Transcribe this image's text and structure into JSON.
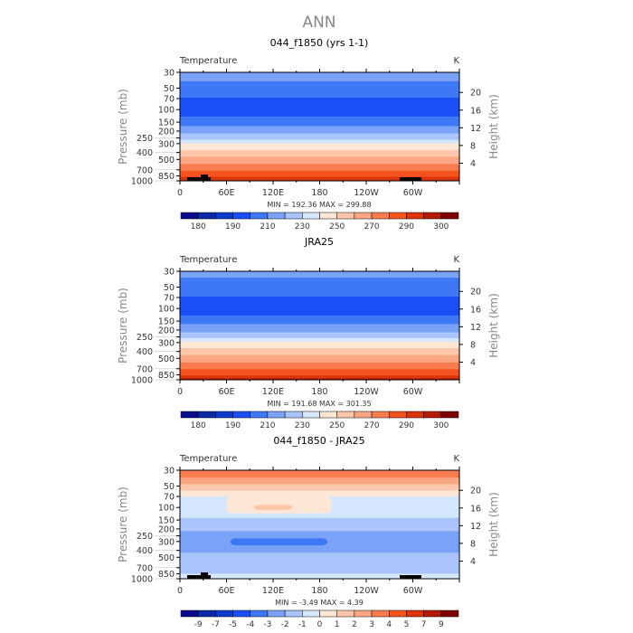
{
  "title": "ANN",
  "palette": [
    "#0a0a8c",
    "#0b2aa6",
    "#0c3ccf",
    "#1a4ff5",
    "#3f78f5",
    "#7aa2f7",
    "#a9c4fa",
    "#d5e7fc",
    "#fde7d4",
    "#fcc7aa",
    "#fba683",
    "#f97c4e",
    "#f4521f",
    "#da3407",
    "#b41b04",
    "#7f0000"
  ],
  "chart_data": [
    {
      "type": "heatmap",
      "title": "044_f1850 (yrs 1-1)",
      "left_label": "Temperature",
      "units": "K",
      "ylabel": "Pressure (mb)",
      "y2label": "Height (km)",
      "yticks": [
        30,
        50,
        70,
        100,
        150,
        200,
        250,
        300,
        400,
        500,
        700,
        850,
        1000
      ],
      "y2ticks": [
        4,
        8,
        12,
        16,
        20
      ],
      "xticks": [
        "0",
        "60E",
        "120E",
        "180",
        "120W",
        "60W"
      ],
      "ylim": [
        1000,
        30
      ],
      "yscale": "log",
      "stats": "MIN = 192.36   MAX = 299.88",
      "levels": [
        "180",
        "185",
        "190",
        "200",
        "210",
        "220",
        "230",
        "240",
        "250",
        "260",
        "270",
        "280",
        "290",
        "295",
        "300"
      ],
      "level_labels": [
        "180",
        "190",
        "210",
        "230",
        "250",
        "270",
        "290",
        "300"
      ],
      "bands": [
        [
          30,
          40,
          5
        ],
        [
          40,
          68,
          4
        ],
        [
          68,
          125,
          3
        ],
        [
          125,
          170,
          4
        ],
        [
          170,
          215,
          5
        ],
        [
          215,
          265,
          6
        ],
        [
          265,
          300,
          7
        ],
        [
          300,
          370,
          8
        ],
        [
          370,
          460,
          9
        ],
        [
          460,
          580,
          10
        ],
        [
          580,
          720,
          11
        ],
        [
          720,
          880,
          12
        ],
        [
          880,
          1000,
          13
        ]
      ],
      "patches": [],
      "topography": true
    },
    {
      "type": "heatmap",
      "title": "JRA25",
      "left_label": "Temperature",
      "units": "K",
      "ylabel": "Pressure (mb)",
      "y2label": "Height (km)",
      "yticks": [
        30,
        50,
        70,
        100,
        150,
        200,
        250,
        300,
        400,
        500,
        700,
        850,
        1000
      ],
      "y2ticks": [
        4,
        8,
        12,
        16,
        20
      ],
      "xticks": [
        "0",
        "60E",
        "120E",
        "180",
        "120W",
        "60W"
      ],
      "ylim": [
        1000,
        30
      ],
      "yscale": "log",
      "stats": "MIN = 191.68   MAX = 301.35",
      "levels": [
        "180",
        "185",
        "190",
        "200",
        "210",
        "220",
        "230",
        "240",
        "250",
        "260",
        "270",
        "280",
        "290",
        "295",
        "300"
      ],
      "level_labels": [
        "180",
        "190",
        "210",
        "230",
        "250",
        "270",
        "290",
        "300"
      ],
      "bands": [
        [
          30,
          37,
          5
        ],
        [
          37,
          68,
          4
        ],
        [
          68,
          125,
          3
        ],
        [
          125,
          165,
          4
        ],
        [
          165,
          215,
          5
        ],
        [
          215,
          260,
          6
        ],
        [
          260,
          290,
          7
        ],
        [
          290,
          360,
          8
        ],
        [
          360,
          450,
          9
        ],
        [
          450,
          570,
          10
        ],
        [
          570,
          710,
          11
        ],
        [
          710,
          870,
          12
        ],
        [
          870,
          960,
          13
        ],
        [
          960,
          1000,
          14
        ]
      ],
      "patches": [],
      "topography": false
    },
    {
      "type": "heatmap",
      "title": "044_f1850 - JRA25",
      "left_label": "Temperature",
      "units": "K",
      "ylabel": "Pressure (mb)",
      "y2label": "Height (km)",
      "yticks": [
        30,
        50,
        70,
        100,
        150,
        200,
        250,
        300,
        400,
        500,
        700,
        850,
        1000
      ],
      "y2ticks": [
        4,
        8,
        12,
        16,
        20
      ],
      "xticks": [
        "0",
        "60E",
        "120E",
        "180",
        "120W",
        "60W"
      ],
      "ylim": [
        1000,
        30
      ],
      "yscale": "log",
      "stats": "MIN =   -3.49   MAX =    4.39",
      "levels": [
        "-9",
        "-7",
        "-5",
        "-4",
        "-3",
        "-2",
        "-1",
        "0",
        "1",
        "2",
        "3",
        "4",
        "5",
        "7",
        "9"
      ],
      "level_labels": [
        "-9",
        "-7",
        "-5",
        "-4",
        "-3",
        "-2",
        "-1",
        "0",
        "1",
        "2",
        "3",
        "4",
        "5",
        "7",
        "9"
      ],
      "bands": [
        [
          30,
          38,
          11
        ],
        [
          38,
          47,
          10
        ],
        [
          47,
          58,
          9
        ],
        [
          58,
          70,
          8
        ],
        [
          70,
          140,
          7
        ],
        [
          140,
          215,
          6
        ],
        [
          215,
          430,
          5
        ],
        [
          430,
          850,
          6
        ],
        [
          850,
          1000,
          7
        ]
      ],
      "patches": [
        [
          70,
          120,
          60,
          195,
          8
        ],
        [
          92,
          108,
          95,
          145,
          9
        ],
        [
          270,
          340,
          65,
          190,
          4
        ]
      ],
      "topography": true
    }
  ]
}
